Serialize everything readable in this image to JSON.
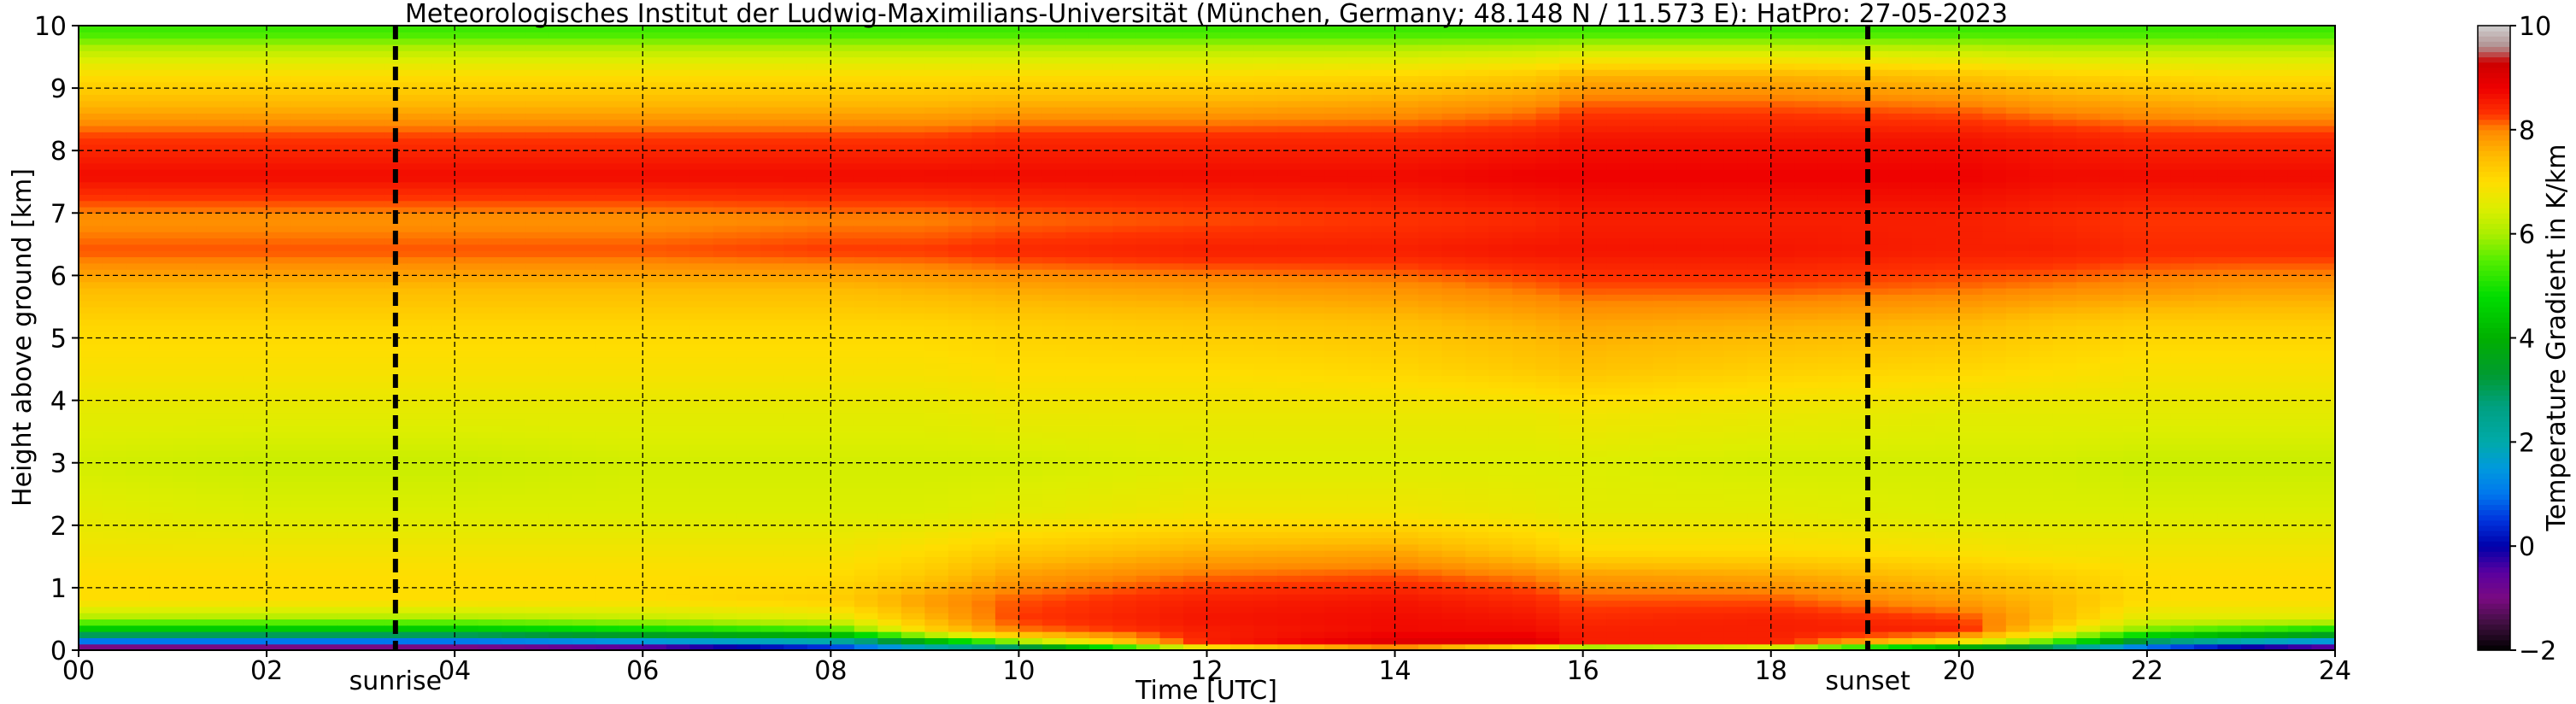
{
  "chart_data": {
    "type": "heatmap",
    "title": "Meteorologisches Institut der Ludwig-Maximilians-Universität (München, Germany; 48.148 N / 11.573 E):    HatPro: 27-05-2023",
    "xlabel": "Time [UTC]",
    "ylabel": "Height above ground [km]",
    "xlim": [
      0,
      24
    ],
    "ylim": [
      0,
      10
    ],
    "x_ticks": [
      "00",
      "02",
      "04",
      "06",
      "08",
      "10",
      "12",
      "14",
      "16",
      "18",
      "20",
      "22",
      "24"
    ],
    "y_ticks": [
      "0",
      "1",
      "2",
      "3",
      "4",
      "5",
      "6",
      "7",
      "8",
      "9",
      "10"
    ],
    "grid": true,
    "colorbar": {
      "label": "Temperature Gradient in K/km",
      "range": [
        -2,
        10
      ],
      "ticks": [
        "−2",
        "0",
        "2",
        "4",
        "6",
        "8",
        "10"
      ]
    },
    "annotations": [
      {
        "label": "sunrise",
        "x": 3.37
      },
      {
        "label": "sunset",
        "x": 19.03
      }
    ],
    "time_samples": [
      0,
      2,
      4,
      6,
      8,
      9,
      10,
      12,
      14,
      15.5,
      16,
      18,
      20,
      21,
      22,
      23,
      24
    ],
    "profiles": [
      {
        "height": 0.05,
        "values": [
          -1.0,
          -1.0,
          -1.0,
          -0.5,
          0.5,
          2.0,
          3.0,
          7.0,
          8.0,
          7.0,
          6.0,
          6.5,
          4.0,
          3.0,
          1.0,
          0.0,
          -0.5
        ]
      },
      {
        "height": 0.15,
        "values": [
          1.0,
          1.0,
          1.0,
          1.5,
          2.0,
          4.0,
          6.0,
          8.5,
          9.0,
          9.0,
          8.5,
          8.5,
          7.0,
          5.5,
          3.0,
          2.0,
          1.5
        ]
      },
      {
        "height": 0.3,
        "values": [
          4.0,
          4.0,
          4.0,
          4.5,
          5.0,
          7.0,
          8.0,
          8.5,
          8.7,
          8.7,
          8.5,
          8.5,
          8.5,
          7.0,
          5.5,
          5.0,
          4.5
        ]
      },
      {
        "height": 0.5,
        "values": [
          6.0,
          6.0,
          6.0,
          6.2,
          6.5,
          7.5,
          8.3,
          8.6,
          8.7,
          8.6,
          8.4,
          8.5,
          8.3,
          7.5,
          6.5,
          6.5,
          6.5
        ]
      },
      {
        "height": 0.8,
        "values": [
          7.0,
          7.0,
          7.0,
          7.0,
          7.2,
          7.8,
          8.2,
          8.5,
          8.6,
          8.4,
          8.2,
          8.2,
          7.8,
          7.5,
          7.0,
          7.0,
          7.0
        ]
      },
      {
        "height": 1.2,
        "values": [
          7.0,
          7.0,
          7.0,
          7.0,
          7.0,
          7.3,
          7.8,
          8.1,
          8.2,
          8.0,
          7.8,
          7.7,
          7.4,
          7.2,
          7.0,
          7.0,
          7.0
        ]
      },
      {
        "height": 1.6,
        "values": [
          6.8,
          6.8,
          6.8,
          6.8,
          6.8,
          7.0,
          7.3,
          7.6,
          7.7,
          7.3,
          7.0,
          7.0,
          6.9,
          6.8,
          6.8,
          6.8,
          6.8
        ]
      },
      {
        "height": 2.2,
        "values": [
          6.6,
          6.5,
          6.5,
          6.5,
          6.5,
          6.5,
          6.6,
          6.8,
          6.8,
          6.7,
          6.6,
          6.6,
          6.5,
          6.5,
          6.5,
          6.5,
          6.5
        ]
      },
      {
        "height": 3.0,
        "values": [
          6.4,
          6.3,
          6.3,
          6.4,
          6.4,
          6.4,
          6.4,
          6.5,
          6.5,
          6.5,
          6.5,
          6.4,
          6.4,
          6.4,
          6.3,
          6.3,
          6.3
        ]
      },
      {
        "height": 3.8,
        "values": [
          6.6,
          6.6,
          6.6,
          6.6,
          6.6,
          6.6,
          6.7,
          6.7,
          6.7,
          6.7,
          6.8,
          6.7,
          6.6,
          6.6,
          6.6,
          6.6,
          6.6
        ]
      },
      {
        "height": 4.5,
        "values": [
          6.9,
          6.9,
          6.9,
          6.9,
          6.9,
          6.9,
          7.0,
          7.0,
          7.1,
          7.3,
          7.4,
          7.2,
          7.1,
          7.0,
          6.9,
          6.9,
          6.9
        ]
      },
      {
        "height": 5.2,
        "values": [
          7.1,
          7.1,
          7.1,
          7.1,
          7.1,
          7.1,
          7.2,
          7.3,
          7.4,
          7.6,
          7.7,
          7.6,
          7.5,
          7.3,
          7.2,
          7.2,
          7.2
        ]
      },
      {
        "height": 5.8,
        "values": [
          7.5,
          7.5,
          7.5,
          7.5,
          7.5,
          7.6,
          7.7,
          7.8,
          7.9,
          8.1,
          8.2,
          8.2,
          8.1,
          8.0,
          7.9,
          7.8,
          7.8
        ]
      },
      {
        "height": 6.4,
        "values": [
          8.2,
          8.2,
          8.2,
          8.2,
          8.3,
          8.3,
          8.4,
          8.5,
          8.5,
          8.6,
          8.6,
          8.6,
          8.5,
          8.5,
          8.4,
          8.4,
          8.4
        ]
      },
      {
        "height": 6.9,
        "values": [
          7.9,
          7.9,
          7.9,
          7.9,
          8.0,
          8.0,
          8.1,
          8.2,
          8.3,
          8.4,
          8.5,
          8.5,
          8.5,
          8.4,
          8.3,
          8.3,
          8.3
        ]
      },
      {
        "height": 7.6,
        "values": [
          8.7,
          8.7,
          8.7,
          8.7,
          8.7,
          8.7,
          8.7,
          8.7,
          8.7,
          8.8,
          8.8,
          8.8,
          8.8,
          8.7,
          8.7,
          8.7,
          8.7
        ]
      },
      {
        "height": 8.2,
        "values": [
          8.3,
          8.3,
          8.3,
          8.3,
          8.3,
          8.3,
          8.4,
          8.4,
          8.4,
          8.5,
          8.6,
          8.6,
          8.6,
          8.5,
          8.4,
          8.4,
          8.4
        ]
      },
      {
        "height": 8.7,
        "values": [
          7.6,
          7.6,
          7.6,
          7.6,
          7.6,
          7.6,
          7.7,
          7.7,
          7.8,
          8.0,
          8.2,
          8.2,
          8.1,
          7.9,
          7.8,
          7.7,
          7.7
        ]
      },
      {
        "height": 9.2,
        "values": [
          7.0,
          7.0,
          7.0,
          7.0,
          7.0,
          7.0,
          7.0,
          7.0,
          7.1,
          7.3,
          7.6,
          7.6,
          7.4,
          7.2,
          7.1,
          7.0,
          7.0
        ]
      },
      {
        "height": 9.6,
        "values": [
          6.2,
          6.2,
          6.2,
          6.2,
          6.2,
          6.2,
          6.2,
          6.2,
          6.2,
          6.3,
          6.4,
          6.4,
          6.3,
          6.2,
          6.2,
          6.2,
          6.2
        ]
      },
      {
        "height": 9.9,
        "values": [
          5.3,
          5.3,
          5.3,
          5.3,
          5.3,
          5.3,
          5.3,
          5.3,
          5.3,
          5.3,
          5.3,
          5.3,
          5.3,
          5.3,
          5.3,
          5.3,
          5.3
        ]
      }
    ],
    "colorscale": [
      {
        "value": -2.0,
        "color": "#000000"
      },
      {
        "value": -1.5,
        "color": "#3d0f3d"
      },
      {
        "value": -1.0,
        "color": "#7a0a82"
      },
      {
        "value": -0.5,
        "color": "#5a00a0"
      },
      {
        "value": 0.0,
        "color": "#0000aa"
      },
      {
        "value": 0.5,
        "color": "#0033dd"
      },
      {
        "value": 1.0,
        "color": "#0077ee"
      },
      {
        "value": 1.5,
        "color": "#0099dd"
      },
      {
        "value": 2.0,
        "color": "#00aaaa"
      },
      {
        "value": 2.7,
        "color": "#00a080"
      },
      {
        "value": 3.3,
        "color": "#009a30"
      },
      {
        "value": 4.0,
        "color": "#00b000"
      },
      {
        "value": 4.8,
        "color": "#00dd00"
      },
      {
        "value": 5.5,
        "color": "#55ee00"
      },
      {
        "value": 6.0,
        "color": "#aaee00"
      },
      {
        "value": 6.5,
        "color": "#ddee00"
      },
      {
        "value": 7.0,
        "color": "#ffdd00"
      },
      {
        "value": 7.5,
        "color": "#ffbb00"
      },
      {
        "value": 8.0,
        "color": "#ff8800"
      },
      {
        "value": 8.3,
        "color": "#ff3300"
      },
      {
        "value": 8.8,
        "color": "#ee0000"
      },
      {
        "value": 9.3,
        "color": "#cc0000"
      },
      {
        "value": 9.6,
        "color": "#b09090"
      },
      {
        "value": 10.0,
        "color": "#d0d0d0"
      }
    ]
  }
}
